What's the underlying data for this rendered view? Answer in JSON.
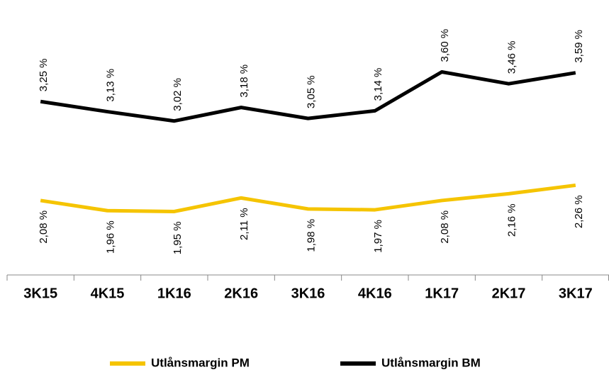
{
  "chart_data": {
    "type": "line",
    "categories": [
      "3K15",
      "4K15",
      "1K16",
      "2K16",
      "3K16",
      "4K16",
      "1K17",
      "2K17",
      "3K17"
    ],
    "series": [
      {
        "name": "Utlånsmargin PM",
        "color": "#f5c400",
        "values": [
          2.08,
          1.96,
          1.95,
          2.11,
          1.98,
          1.97,
          2.08,
          2.16,
          2.26
        ],
        "value_labels": [
          "2,08 %",
          "1,96 %",
          "1,95 %",
          "2,11 %",
          "1,98 %",
          "1,97 %",
          "2,08 %",
          "2,16 %",
          "2,26 %"
        ]
      },
      {
        "name": "Utlånsmargin BM",
        "color": "#000000",
        "values": [
          3.25,
          3.13,
          3.02,
          3.18,
          3.05,
          3.14,
          3.6,
          3.46,
          3.59
        ],
        "value_labels": [
          "3,25 %",
          "3,13 %",
          "3,02 %",
          "3,18 %",
          "3,05 %",
          "3,14 %",
          "3,60 %",
          "3,46 %",
          "3,59 %"
        ]
      }
    ],
    "ylim": [
      1.2,
      4.45
    ],
    "legend": "bottom"
  }
}
